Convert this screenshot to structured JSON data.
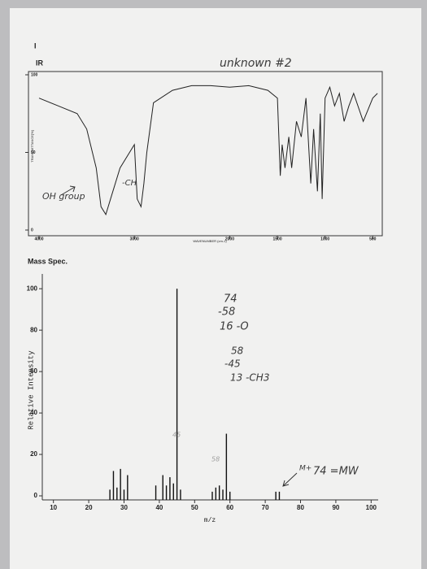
{
  "page_mark": "I",
  "chart_data": [
    {
      "type": "line",
      "title": "IR",
      "xlabel": "WAVENUMBER (cm-1)",
      "ylabel": "TRANSMITTANCE[%]",
      "x": [
        4000,
        3800,
        3600,
        3500,
        3400,
        3350,
        3300,
        3250,
        3150,
        3000,
        2970,
        2930,
        2900,
        2870,
        2800,
        2600,
        2400,
        2200,
        2000,
        1800,
        1600,
        1500,
        1470,
        1450,
        1420,
        1380,
        1350,
        1300,
        1250,
        1200,
        1150,
        1120,
        1080,
        1050,
        1030,
        1000,
        950,
        900,
        850,
        800,
        750,
        700,
        600,
        500,
        450
      ],
      "values": [
        85,
        80,
        75,
        65,
        40,
        15,
        10,
        20,
        40,
        55,
        20,
        15,
        30,
        50,
        82,
        90,
        93,
        93,
        92,
        93,
        90,
        85,
        35,
        55,
        40,
        60,
        40,
        70,
        60,
        85,
        30,
        65,
        25,
        75,
        20,
        85,
        92,
        80,
        88,
        70,
        80,
        88,
        70,
        85,
        88
      ],
      "color": "#222222",
      "xlim": [
        4000,
        400
      ],
      "ylim": [
        0,
        100
      ],
      "xticks": [
        4000,
        3000,
        2000,
        1500,
        1000,
        500
      ],
      "yticks": [
        0,
        50,
        100
      ],
      "annotations": [
        "unknown #2",
        "OH group",
        "-CH"
      ]
    },
    {
      "type": "bar",
      "title": "Mass Spec.",
      "xlabel": "m/z",
      "ylabel": "Relative Intensity",
      "x": [
        26,
        27,
        28,
        29,
        30,
        31,
        39,
        41,
        42,
        43,
        44,
        45,
        46,
        55,
        56,
        57,
        58,
        59,
        60,
        73,
        74
      ],
      "values": [
        3,
        12,
        4,
        13,
        3,
        10,
        5,
        10,
        5,
        9,
        6,
        100,
        3,
        2,
        4,
        5,
        3,
        30,
        2,
        2,
        2
      ],
      "color": "#111111",
      "xlim": [
        8,
        102
      ],
      "ylim": [
        0,
        104
      ],
      "xticks": [
        10,
        20,
        30,
        40,
        50,
        60,
        70,
        80,
        90,
        100
      ],
      "yticks": [
        0,
        20,
        40,
        60,
        80,
        100
      ],
      "annotations": [
        "74",
        "-58",
        "16 -O",
        "58",
        "-45",
        "13 -CH3",
        "45",
        "58",
        "M+",
        "74 =MW"
      ]
    }
  ]
}
